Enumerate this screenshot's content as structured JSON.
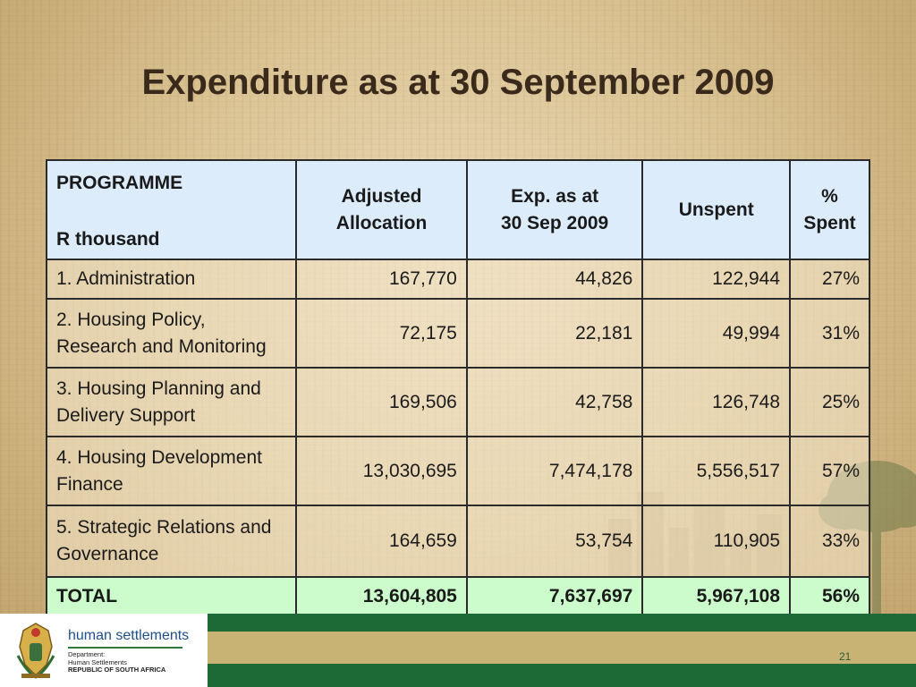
{
  "slide": {
    "title": "Expenditure as at 30 September 2009",
    "page_number": "21"
  },
  "table": {
    "headers": {
      "programme": "PROGRAMME",
      "unit": "R thousand",
      "adjusted_line1": "Adjusted",
      "adjusted_line2": "Allocation",
      "exp_line1": "Exp. as at",
      "exp_line2": "30 Sep 2009",
      "unspent": "Unspent",
      "pct_line1": "%",
      "pct_line2": "Spent"
    },
    "rows": [
      {
        "name_line1": "1. Administration",
        "name_line2": "",
        "allocation": "167,770",
        "expenditure": "44,826",
        "unspent": "122,944",
        "pct": "27%"
      },
      {
        "name_line1": "2. Housing Policy,",
        "name_line2": "Research and Monitoring",
        "allocation": "72,175",
        "expenditure": "22,181",
        "unspent": "49,994",
        "pct": "31%"
      },
      {
        "name_line1": "3. Housing Planning and",
        "name_line2": "Delivery Support",
        "allocation": "169,506",
        "expenditure": "42,758",
        "unspent": "126,748",
        "pct": "25%"
      },
      {
        "name_line1": "4. Housing Development",
        "name_line2": "Finance",
        "allocation": "13,030,695",
        "expenditure": "7,474,178",
        "unspent": "5,556,517",
        "pct": "57%"
      },
      {
        "name_line1": "5. Strategic Relations and",
        "name_line2": "Governance",
        "allocation": "164,659",
        "expenditure": "53,754",
        "unspent": "110,905",
        "pct": "33%"
      }
    ],
    "total": {
      "name": "TOTAL",
      "allocation": "13,604,805",
      "expenditure": "7,637,697",
      "unspent": "5,967,108",
      "pct": "56%"
    }
  },
  "logo": {
    "main": "human settlements",
    "line1": "Department:",
    "line2": "Human Settlements",
    "line3": "REPUBLIC OF SOUTH AFRICA"
  },
  "colors": {
    "header_fill": "#dcecfb",
    "total_fill": "#ccfccc",
    "footer_green": "#1e6a36",
    "footer_gold": "#c8b374",
    "title_text": "#3a2a1c"
  }
}
